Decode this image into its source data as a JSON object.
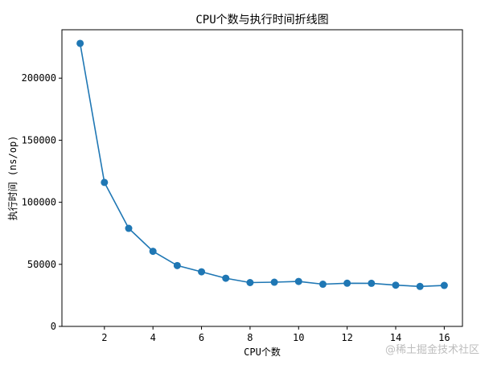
{
  "chart_data": {
    "type": "line",
    "title": "CPU个数与执行时间折线图",
    "xlabel": "CPU个数",
    "ylabel": "执行时间 (ns/op)",
    "xlim": [
      0.25,
      16.75
    ],
    "ylim": [
      0,
      239000
    ],
    "x_ticks": [
      2,
      4,
      6,
      8,
      10,
      12,
      14,
      16
    ],
    "y_ticks": [
      0,
      50000,
      100000,
      150000,
      200000
    ],
    "grid": false,
    "color": "#1f77b4",
    "marker": "circle",
    "series": [
      {
        "x": [
          1,
          2,
          3,
          4,
          5,
          6,
          7,
          8,
          9,
          10,
          11,
          12,
          13,
          14,
          15,
          16
        ],
        "values": [
          228000,
          116000,
          79000,
          60500,
          49000,
          44000,
          38800,
          35300,
          35600,
          36200,
          34000,
          34800,
          34700,
          33200,
          32200,
          33000
        ]
      }
    ]
  },
  "watermark": "@稀土掘金技术社区"
}
